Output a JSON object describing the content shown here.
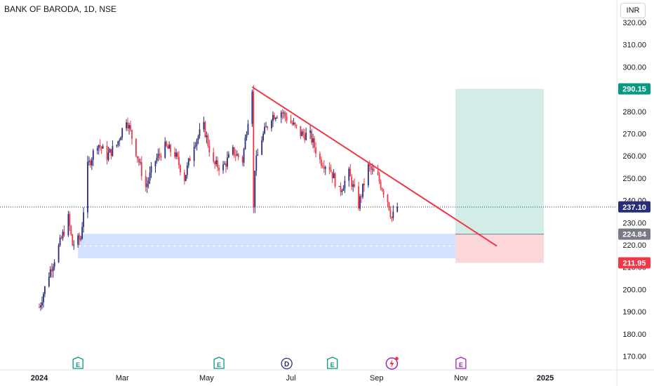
{
  "header": {
    "title": "BANK OF BARODA, 1D, NSE",
    "currency": "INR"
  },
  "chart_data": {
    "type": "candlestick",
    "y_ticks": [
      320,
      310,
      300,
      290,
      280,
      270,
      260,
      250,
      240,
      230,
      220,
      210,
      200,
      190,
      180,
      170
    ],
    "ylim": [
      165,
      324
    ],
    "x_ticks": [
      "2024",
      "Mar",
      "May",
      "Jul",
      "Sep",
      "Nov",
      "2025"
    ],
    "price_labels": [
      {
        "value": 290.15,
        "text": "290.15",
        "color": "#089981"
      },
      {
        "value": 237.1,
        "text": "237.10",
        "color": "#2a2e78"
      },
      {
        "value": 224.84,
        "text": "224.84",
        "color": "#787b86"
      },
      {
        "value": 211.95,
        "text": "211.95",
        "color": "#f23645"
      }
    ],
    "last_price": 237.1,
    "trendline": {
      "from": {
        "date": "2024-06-03",
        "price": 291
      },
      "to": {
        "date": "2024-11-27",
        "price": 219.5
      },
      "color": "#f23645"
    },
    "position": {
      "start": "2024-10-28",
      "end": "2024-12-31",
      "entry": 224.84,
      "target": 290.15,
      "stop": 211.95
    },
    "support_zone": {
      "start": "2024-01-29",
      "end": "2024-10-28",
      "top": 225,
      "bottom": 214,
      "mid": 219.5
    },
    "events": [
      {
        "date": "2024-01-29",
        "label": "E",
        "kind": "earnings"
      },
      {
        "date": "2024-05-10",
        "label": "E",
        "kind": "earnings"
      },
      {
        "date": "2024-06-28",
        "label": "D",
        "kind": "dividend"
      },
      {
        "date": "2024-07-31",
        "label": "E",
        "kind": "earnings"
      },
      {
        "date": "2024-09-12",
        "label": "",
        "kind": "split"
      },
      {
        "date": "2024-11-01",
        "label": "E",
        "kind": "earnings-upcoming"
      }
    ],
    "price_path": [
      [
        "2024-01-01",
        192
      ],
      [
        "2024-01-08",
        207
      ],
      [
        "2024-01-15",
        219
      ],
      [
        "2024-01-22",
        232
      ],
      [
        "2024-01-25",
        220
      ],
      [
        "2024-01-31",
        223
      ],
      [
        "2024-02-05",
        255
      ],
      [
        "2024-02-12",
        266
      ],
      [
        "2024-02-19",
        260
      ],
      [
        "2024-02-26",
        265
      ],
      [
        "2024-03-04",
        277
      ],
      [
        "2024-03-11",
        262
      ],
      [
        "2024-03-18",
        246
      ],
      [
        "2024-03-25",
        258
      ],
      [
        "2024-04-01",
        264
      ],
      [
        "2024-04-08",
        261
      ],
      [
        "2024-04-15",
        250
      ],
      [
        "2024-04-22",
        266
      ],
      [
        "2024-04-29",
        273
      ],
      [
        "2024-05-06",
        256
      ],
      [
        "2024-05-13",
        255
      ],
      [
        "2024-05-20",
        262
      ],
      [
        "2024-05-27",
        258
      ],
      [
        "2024-06-03",
        291
      ],
      [
        "2024-06-04",
        236
      ],
      [
        "2024-06-05",
        255
      ],
      [
        "2024-06-10",
        268
      ],
      [
        "2024-06-17",
        278
      ],
      [
        "2024-06-24",
        280
      ],
      [
        "2024-07-01",
        275
      ],
      [
        "2024-07-08",
        270
      ],
      [
        "2024-07-15",
        269
      ],
      [
        "2024-07-22",
        258
      ],
      [
        "2024-07-29",
        255
      ],
      [
        "2024-08-05",
        244
      ],
      [
        "2024-08-12",
        252
      ],
      [
        "2024-08-19",
        238
      ],
      [
        "2024-08-26",
        255
      ],
      [
        "2024-09-02",
        250
      ],
      [
        "2024-09-09",
        240
      ],
      [
        "2024-09-12",
        232
      ],
      [
        "2024-09-16",
        237.1
      ]
    ]
  }
}
